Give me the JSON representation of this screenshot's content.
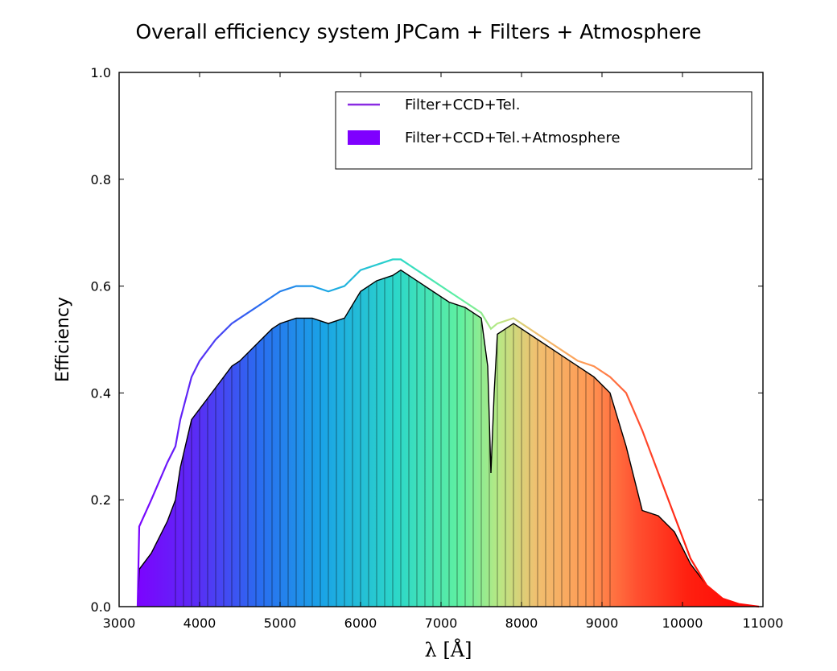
{
  "chart_data": {
    "type": "area",
    "title": "Overall efficiency system JPCam + Filters + Atmosphere",
    "xlabel": "λ [Å]",
    "ylabel": "Efficiency",
    "xlim": [
      3000,
      11000
    ],
    "ylim": [
      0.0,
      1.0
    ],
    "xticks": [
      3000,
      4000,
      5000,
      6000,
      7000,
      8000,
      9000,
      10000,
      11000
    ],
    "yticks": [
      0.0,
      0.2,
      0.4,
      0.6,
      0.8,
      1.0
    ],
    "xtick_labels": [
      "3000",
      "4000",
      "5000",
      "6000",
      "7000",
      "8000",
      "9000",
      "10000",
      "11000"
    ],
    "ytick_labels": [
      "0.0",
      "0.2",
      "0.4",
      "0.6",
      "0.8",
      "1.0"
    ],
    "grid": false,
    "legend_position": "top-right",
    "legend": [
      "Filter+CCD+Tel.",
      "Filter+CCD+Tel.+Atmosphere"
    ],
    "series": [
      {
        "name": "Filter+CCD+Tel.",
        "style": "line",
        "x": [
          3230,
          3250,
          3400,
          3600,
          3700,
          3760,
          3900,
          4000,
          4200,
          4400,
          4500,
          4700,
          4900,
          5000,
          5200,
          5400,
          5600,
          5800,
          6000,
          6200,
          6400,
          6500,
          6700,
          6900,
          7100,
          7300,
          7500,
          7620,
          7700,
          7900,
          8100,
          8300,
          8500,
          8700,
          8900,
          9100,
          9300,
          9500,
          9700,
          9900,
          10100,
          10300,
          10500,
          10700,
          10950
        ],
        "y": [
          0.0,
          0.15,
          0.2,
          0.27,
          0.3,
          0.35,
          0.43,
          0.46,
          0.5,
          0.53,
          0.54,
          0.56,
          0.58,
          0.59,
          0.6,
          0.6,
          0.59,
          0.6,
          0.63,
          0.64,
          0.65,
          0.65,
          0.63,
          0.61,
          0.59,
          0.57,
          0.55,
          0.52,
          0.53,
          0.54,
          0.52,
          0.5,
          0.48,
          0.46,
          0.45,
          0.43,
          0.4,
          0.33,
          0.25,
          0.17,
          0.09,
          0.04,
          0.015,
          0.005,
          0.0
        ]
      },
      {
        "name": "Filter+CCD+Tel.+Atmosphere",
        "style": "filled",
        "x": [
          3230,
          3250,
          3400,
          3600,
          3700,
          3760,
          3900,
          4000,
          4200,
          4400,
          4500,
          4700,
          4900,
          5000,
          5200,
          5400,
          5600,
          5800,
          6000,
          6200,
          6400,
          6500,
          6700,
          6900,
          7100,
          7300,
          7500,
          7580,
          7620,
          7660,
          7700,
          7900,
          8100,
          8300,
          8500,
          8700,
          8900,
          9100,
          9300,
          9500,
          9700,
          9900,
          10100,
          10300,
          10500,
          10700,
          10950
        ],
        "y": [
          0.0,
          0.07,
          0.1,
          0.16,
          0.2,
          0.26,
          0.35,
          0.37,
          0.41,
          0.45,
          0.46,
          0.49,
          0.52,
          0.53,
          0.54,
          0.54,
          0.53,
          0.54,
          0.59,
          0.61,
          0.62,
          0.63,
          0.61,
          0.59,
          0.57,
          0.56,
          0.54,
          0.45,
          0.25,
          0.4,
          0.51,
          0.53,
          0.51,
          0.49,
          0.47,
          0.45,
          0.43,
          0.4,
          0.3,
          0.18,
          0.17,
          0.14,
          0.08,
          0.04,
          0.015,
          0.005,
          0.0
        ]
      }
    ],
    "colors": {
      "line_legend": "#8a2be2",
      "fill_legend": "#7f00ff",
      "atmosphere_outline": "#000000"
    }
  }
}
